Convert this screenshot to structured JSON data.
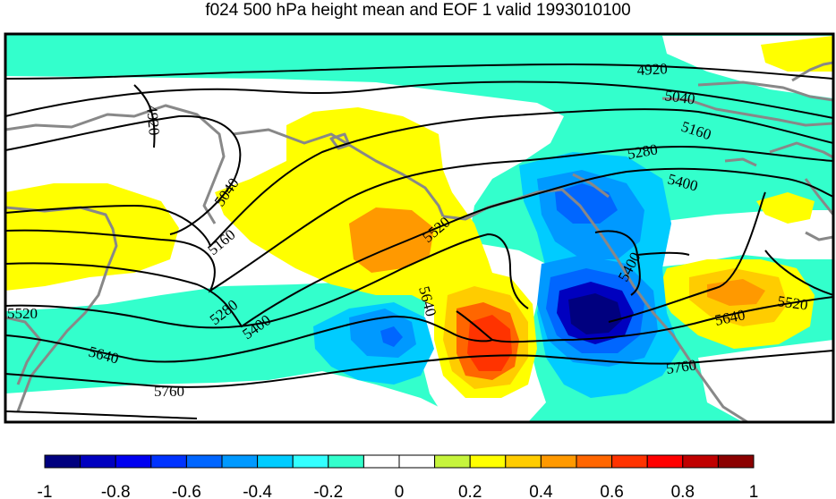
{
  "title": "f024 500 hPa height mean and EOF 1 valid 1993010100",
  "contour_labels": [
    "4920",
    "4920",
    "5040",
    "5040",
    "5160",
    "5160",
    "5280",
    "5280",
    "5400",
    "5400",
    "5400",
    "5520",
    "5520",
    "5520",
    "5640",
    "5640",
    "5640",
    "5760",
    "5760"
  ],
  "colorbar": {
    "colors": [
      "#00007f",
      "#0000bf",
      "#0000f0",
      "#0033ff",
      "#0066ff",
      "#0099ff",
      "#00ccff",
      "#33ffff",
      "#33ffcc",
      "#ffffff",
      "#ffffff",
      "#c6f43c",
      "#ffff00",
      "#ffcc00",
      "#ff9900",
      "#ff6600",
      "#ff3300",
      "#ff0000",
      "#c00000",
      "#8b0000"
    ],
    "tick_labels": [
      "-1",
      "-0.8",
      "-0.6",
      "-0.4",
      "-0.2",
      "0",
      "0.2",
      "0.4",
      "0.6",
      "0.8",
      "1"
    ],
    "min": -1,
    "max": 1
  },
  "fill_colors": {
    "cyan": "#33ffcc",
    "yellow": "#ffff00",
    "orange_light": "#ffcc00",
    "orange": "#ff9900",
    "red_orange": "#ff6600",
    "red": "#ff3300",
    "blue_light": "#00ccff",
    "blue_mid": "#0099ff",
    "blue": "#0066ff",
    "blue_dark": "#0000bf",
    "navy": "#00007f"
  },
  "coastline_color": "#888888"
}
